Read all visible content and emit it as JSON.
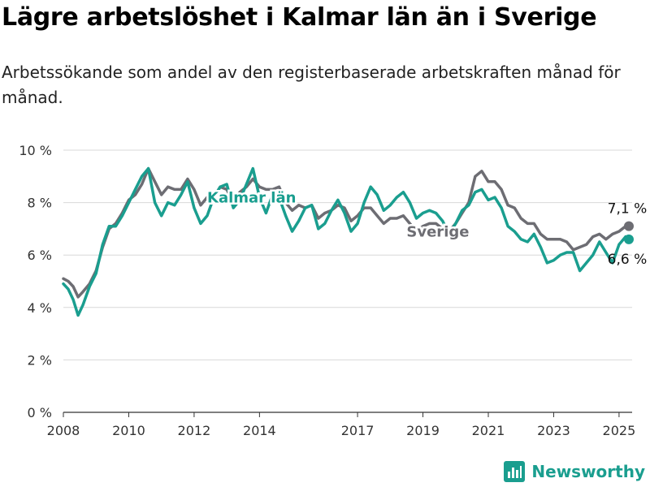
{
  "header": {
    "title": "Lägre arbetslöshet i Kalmar län än i Sverige",
    "subtitle": "Arbetssökande som andel av den registerbaserade arbetskraften månad för månad."
  },
  "brand": {
    "name": "Newsworthy",
    "icon": "bar-chart-logo-icon",
    "color": "#1a9e8f"
  },
  "chart_data": {
    "type": "line",
    "title": "Lägre arbetslöshet i Kalmar län än i Sverige",
    "subtitle": "Arbetssökande som andel av den registerbaserade arbetskraften månad för månad.",
    "ylim": [
      0,
      10
    ],
    "yticks": [
      0,
      2,
      4,
      6,
      8,
      10
    ],
    "ytick_labels": [
      "0 %",
      "2 %",
      "4 %",
      "6 %",
      "8 %",
      "10 %"
    ],
    "xlim": [
      2008,
      2025.4
    ],
    "xticks": [
      2008,
      2010,
      2012,
      2014,
      2017,
      2019,
      2021,
      2023,
      2025
    ],
    "xtick_labels": [
      "2008",
      "2010",
      "2012",
      "2014",
      "2017",
      "2019",
      "2021",
      "2023",
      "2025"
    ],
    "grid": "horizontal",
    "legend": "inline labels",
    "series": [
      {
        "name": "Sverige",
        "color": "#6d6d73",
        "end_label": "7,1 %",
        "points": [
          [
            2008.0,
            5.1
          ],
          [
            2008.15,
            5.0
          ],
          [
            2008.3,
            4.8
          ],
          [
            2008.45,
            4.4
          ],
          [
            2008.6,
            4.6
          ],
          [
            2008.8,
            4.9
          ],
          [
            2009.0,
            5.4
          ],
          [
            2009.2,
            6.3
          ],
          [
            2009.4,
            7.0
          ],
          [
            2009.6,
            7.2
          ],
          [
            2009.8,
            7.6
          ],
          [
            2010.0,
            8.1
          ],
          [
            2010.2,
            8.3
          ],
          [
            2010.4,
            8.7
          ],
          [
            2010.6,
            9.3
          ],
          [
            2010.8,
            8.8
          ],
          [
            2011.0,
            8.3
          ],
          [
            2011.2,
            8.6
          ],
          [
            2011.4,
            8.5
          ],
          [
            2011.6,
            8.5
          ],
          [
            2011.8,
            8.9
          ],
          [
            2012.0,
            8.5
          ],
          [
            2012.2,
            7.9
          ],
          [
            2012.4,
            8.2
          ],
          [
            2012.6,
            8.2
          ],
          [
            2012.8,
            8.6
          ],
          [
            2013.0,
            8.5
          ],
          [
            2013.2,
            8.0
          ],
          [
            2013.4,
            8.4
          ],
          [
            2013.6,
            8.6
          ],
          [
            2013.8,
            8.9
          ],
          [
            2014.0,
            8.6
          ],
          [
            2014.2,
            8.5
          ],
          [
            2014.4,
            8.5
          ],
          [
            2014.6,
            8.6
          ],
          [
            2014.8,
            8.0
          ],
          [
            2015.0,
            7.7
          ],
          [
            2015.2,
            7.9
          ],
          [
            2015.4,
            7.8
          ],
          [
            2015.6,
            7.9
          ],
          [
            2015.8,
            7.4
          ],
          [
            2016.0,
            7.6
          ],
          [
            2016.2,
            7.7
          ],
          [
            2016.4,
            7.9
          ],
          [
            2016.6,
            7.8
          ],
          [
            2016.8,
            7.3
          ],
          [
            2017.0,
            7.5
          ],
          [
            2017.2,
            7.8
          ],
          [
            2017.4,
            7.8
          ],
          [
            2017.6,
            7.5
          ],
          [
            2017.8,
            7.2
          ],
          [
            2018.0,
            7.4
          ],
          [
            2018.2,
            7.4
          ],
          [
            2018.4,
            7.5
          ],
          [
            2018.6,
            7.2
          ],
          [
            2018.8,
            6.9
          ],
          [
            2019.0,
            7.1
          ],
          [
            2019.2,
            7.2
          ],
          [
            2019.4,
            7.2
          ],
          [
            2019.6,
            7.0
          ],
          [
            2019.8,
            6.9
          ],
          [
            2020.0,
            7.2
          ],
          [
            2020.2,
            7.6
          ],
          [
            2020.4,
            8.0
          ],
          [
            2020.6,
            9.0
          ],
          [
            2020.8,
            9.2
          ],
          [
            2021.0,
            8.8
          ],
          [
            2021.2,
            8.8
          ],
          [
            2021.4,
            8.5
          ],
          [
            2021.6,
            7.9
          ],
          [
            2021.8,
            7.8
          ],
          [
            2022.0,
            7.4
          ],
          [
            2022.2,
            7.2
          ],
          [
            2022.4,
            7.2
          ],
          [
            2022.6,
            6.8
          ],
          [
            2022.8,
            6.6
          ],
          [
            2023.0,
            6.6
          ],
          [
            2023.2,
            6.6
          ],
          [
            2023.4,
            6.5
          ],
          [
            2023.6,
            6.2
          ],
          [
            2023.8,
            6.3
          ],
          [
            2024.0,
            6.4
          ],
          [
            2024.2,
            6.7
          ],
          [
            2024.4,
            6.8
          ],
          [
            2024.6,
            6.6
          ],
          [
            2024.8,
            6.8
          ],
          [
            2025.0,
            6.9
          ],
          [
            2025.2,
            7.1
          ],
          [
            2025.3,
            7.1
          ]
        ]
      },
      {
        "name": "Kalmar län",
        "color": "#1a9e8f",
        "end_label": "6,6 %",
        "points": [
          [
            2008.0,
            4.9
          ],
          [
            2008.15,
            4.7
          ],
          [
            2008.3,
            4.3
          ],
          [
            2008.45,
            3.7
          ],
          [
            2008.6,
            4.1
          ],
          [
            2008.8,
            4.8
          ],
          [
            2009.0,
            5.3
          ],
          [
            2009.2,
            6.4
          ],
          [
            2009.4,
            7.1
          ],
          [
            2009.6,
            7.1
          ],
          [
            2009.8,
            7.5
          ],
          [
            2010.0,
            8.0
          ],
          [
            2010.2,
            8.5
          ],
          [
            2010.4,
            9.0
          ],
          [
            2010.6,
            9.3
          ],
          [
            2010.8,
            8.0
          ],
          [
            2011.0,
            7.5
          ],
          [
            2011.2,
            8.0
          ],
          [
            2011.4,
            7.9
          ],
          [
            2011.6,
            8.3
          ],
          [
            2011.8,
            8.8
          ],
          [
            2012.0,
            7.8
          ],
          [
            2012.2,
            7.2
          ],
          [
            2012.4,
            7.5
          ],
          [
            2012.6,
            8.2
          ],
          [
            2012.8,
            8.6
          ],
          [
            2013.0,
            8.7
          ],
          [
            2013.2,
            7.8
          ],
          [
            2013.4,
            8.1
          ],
          [
            2013.6,
            8.7
          ],
          [
            2013.8,
            9.3
          ],
          [
            2014.0,
            8.2
          ],
          [
            2014.2,
            7.6
          ],
          [
            2014.4,
            8.3
          ],
          [
            2014.6,
            8.2
          ],
          [
            2014.8,
            7.5
          ],
          [
            2015.0,
            6.9
          ],
          [
            2015.2,
            7.3
          ],
          [
            2015.4,
            7.8
          ],
          [
            2015.6,
            7.9
          ],
          [
            2015.8,
            7.0
          ],
          [
            2016.0,
            7.2
          ],
          [
            2016.2,
            7.7
          ],
          [
            2016.4,
            8.1
          ],
          [
            2016.6,
            7.6
          ],
          [
            2016.8,
            6.9
          ],
          [
            2017.0,
            7.2
          ],
          [
            2017.2,
            8.0
          ],
          [
            2017.4,
            8.6
          ],
          [
            2017.6,
            8.3
          ],
          [
            2017.8,
            7.7
          ],
          [
            2018.0,
            7.9
          ],
          [
            2018.2,
            8.2
          ],
          [
            2018.4,
            8.4
          ],
          [
            2018.6,
            8.0
          ],
          [
            2018.8,
            7.4
          ],
          [
            2019.0,
            7.6
          ],
          [
            2019.2,
            7.7
          ],
          [
            2019.4,
            7.6
          ],
          [
            2019.6,
            7.3
          ],
          [
            2019.8,
            6.8
          ],
          [
            2020.0,
            7.2
          ],
          [
            2020.2,
            7.7
          ],
          [
            2020.4,
            7.9
          ],
          [
            2020.6,
            8.4
          ],
          [
            2020.8,
            8.5
          ],
          [
            2021.0,
            8.1
          ],
          [
            2021.2,
            8.2
          ],
          [
            2021.4,
            7.8
          ],
          [
            2021.6,
            7.1
          ],
          [
            2021.8,
            6.9
          ],
          [
            2022.0,
            6.6
          ],
          [
            2022.2,
            6.5
          ],
          [
            2022.4,
            6.8
          ],
          [
            2022.6,
            6.3
          ],
          [
            2022.8,
            5.7
          ],
          [
            2023.0,
            5.8
          ],
          [
            2023.2,
            6.0
          ],
          [
            2023.4,
            6.1
          ],
          [
            2023.6,
            6.1
          ],
          [
            2023.8,
            5.4
          ],
          [
            2024.0,
            5.7
          ],
          [
            2024.2,
            6.0
          ],
          [
            2024.4,
            6.5
          ],
          [
            2024.6,
            6.1
          ],
          [
            2024.8,
            5.7
          ],
          [
            2025.0,
            6.4
          ],
          [
            2025.2,
            6.7
          ],
          [
            2025.3,
            6.6
          ]
        ]
      }
    ]
  }
}
